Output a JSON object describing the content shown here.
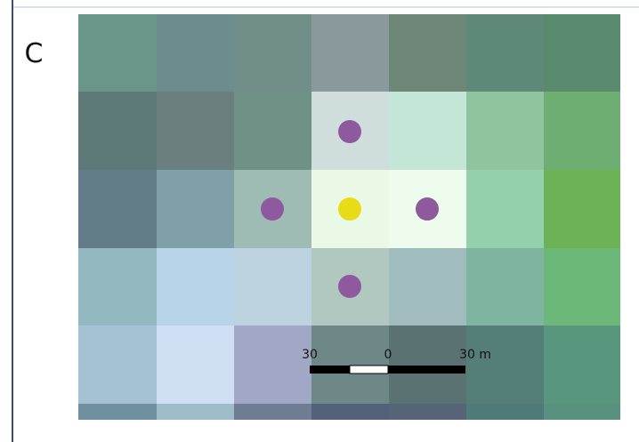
{
  "panel_label": "C",
  "scale_bar": {
    "labels": [
      "30",
      "0",
      "30 m"
    ]
  }
}
